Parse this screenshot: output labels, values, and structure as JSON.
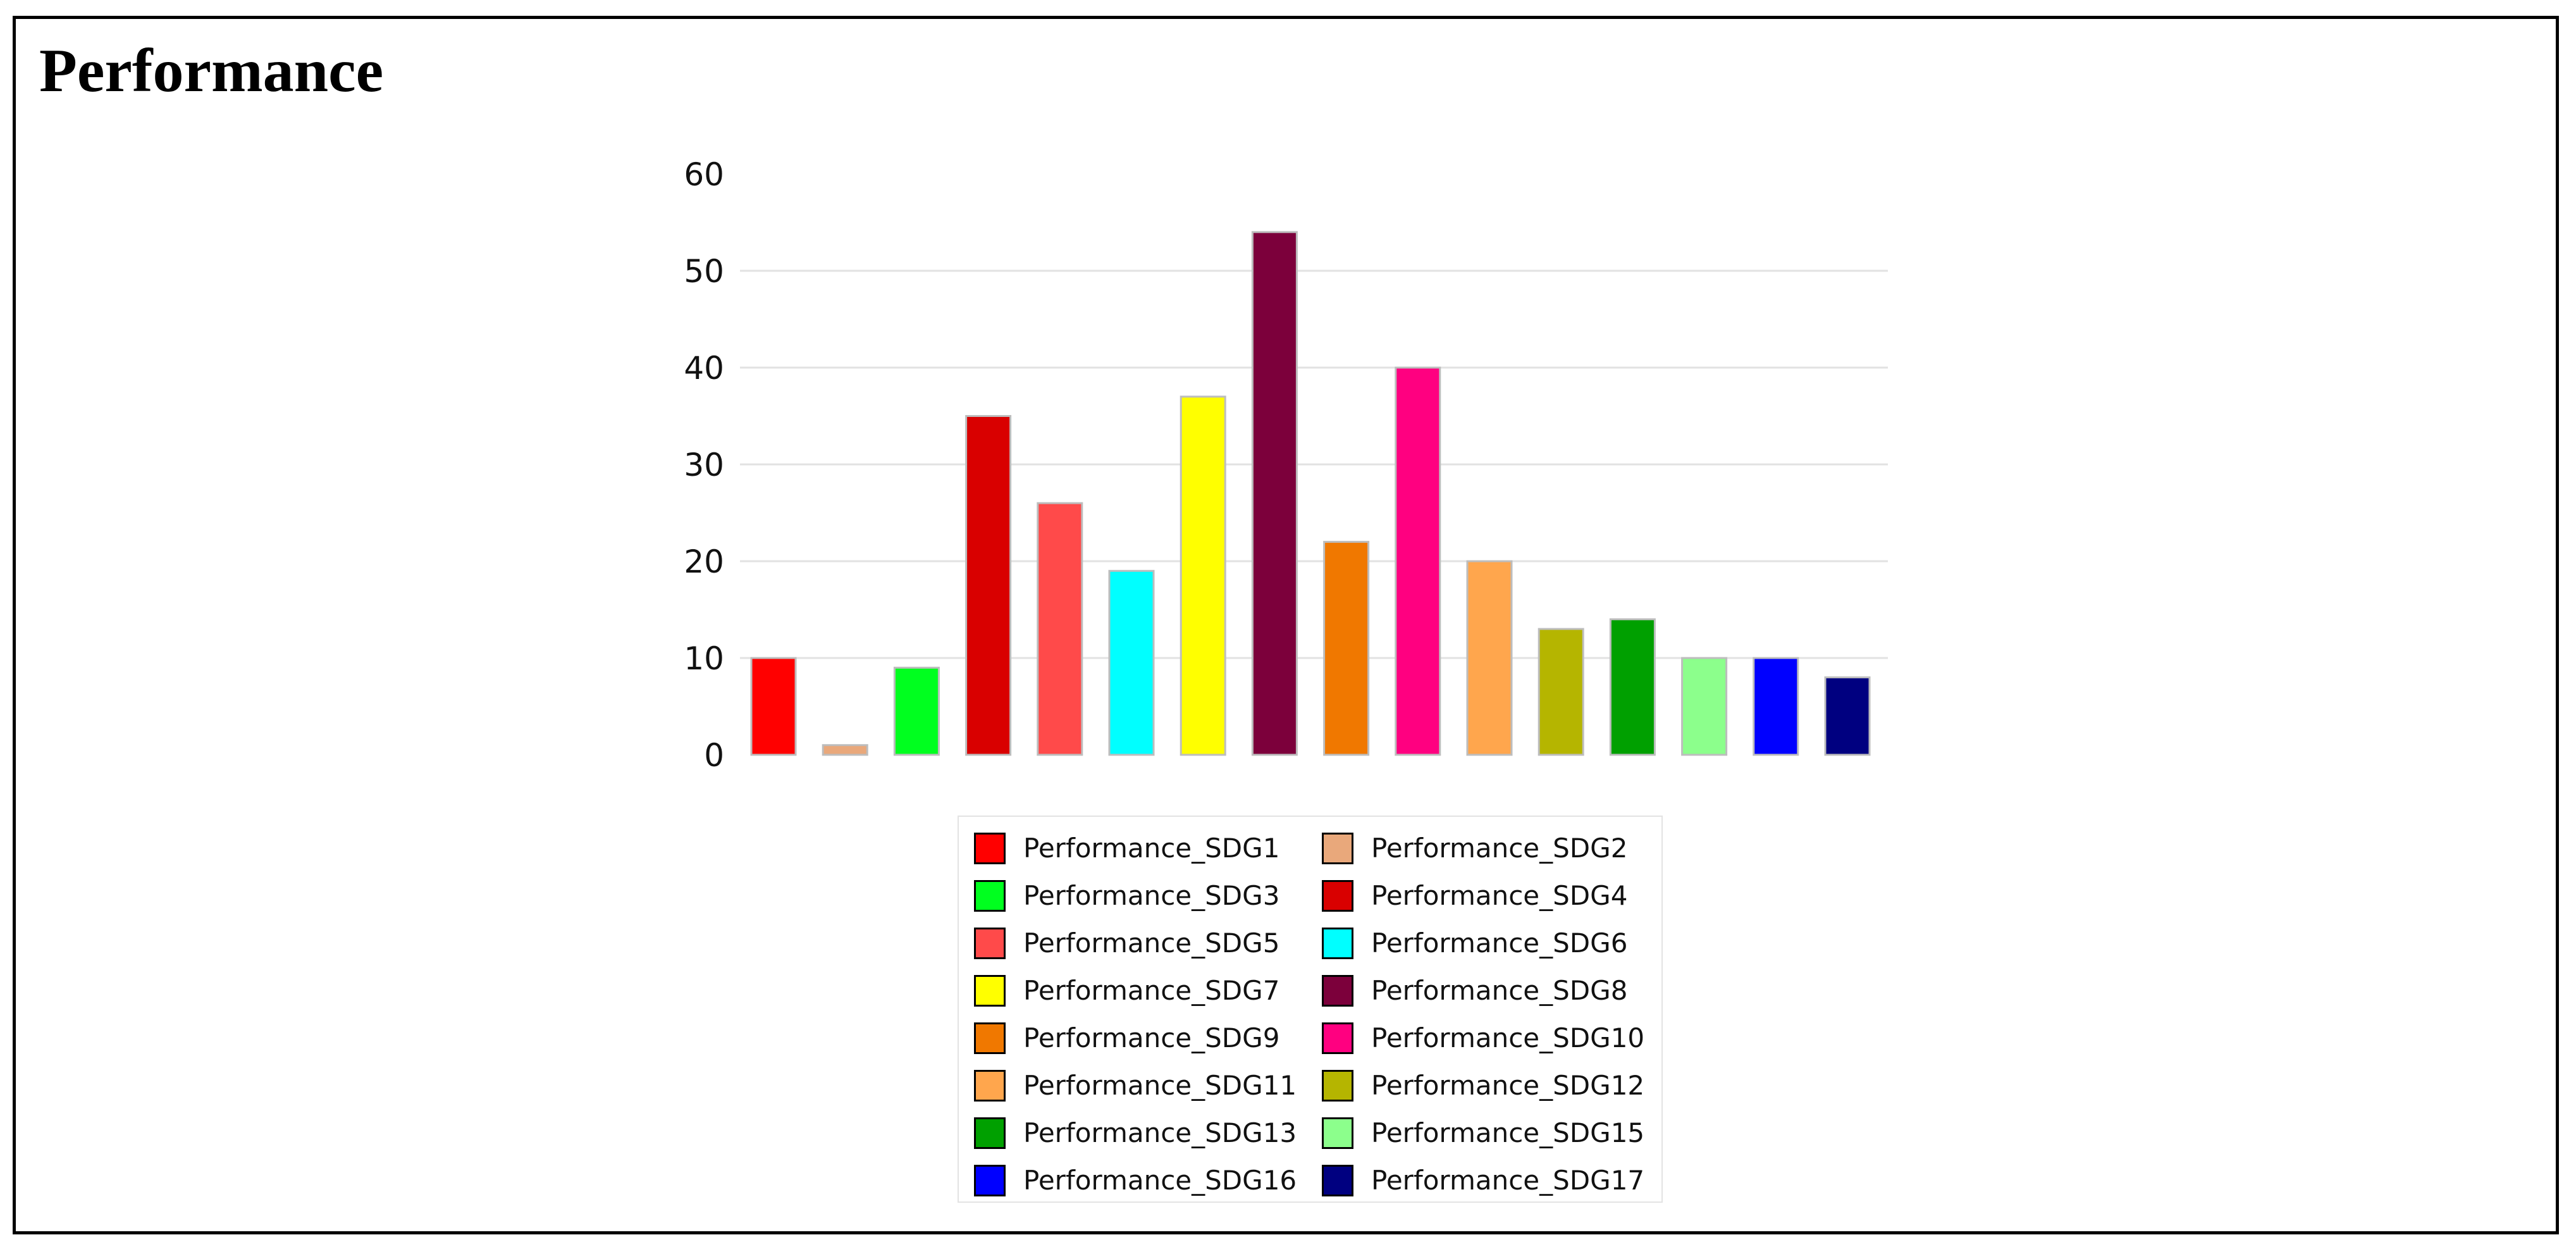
{
  "title": "Performance",
  "chart_data": {
    "type": "bar",
    "title": "Performance",
    "xlabel": "",
    "ylabel": "",
    "ylim": [
      0,
      60
    ],
    "yticks": [
      0,
      10,
      20,
      30,
      40,
      50,
      60
    ],
    "grid": true,
    "legend_position": "bottom",
    "series": [
      {
        "name": "Performance_SDG1",
        "value": 10,
        "color": "#ff0000"
      },
      {
        "name": "Performance_SDG2",
        "value": 1,
        "color": "#e9a87b"
      },
      {
        "name": "Performance_SDG3",
        "value": 9,
        "color": "#00ff1f"
      },
      {
        "name": "Performance_SDG4",
        "value": 35,
        "color": "#d90000"
      },
      {
        "name": "Performance_SDG5",
        "value": 26,
        "color": "#ff4a4a"
      },
      {
        "name": "Performance_SDG6",
        "value": 19,
        "color": "#00ffff"
      },
      {
        "name": "Performance_SDG7",
        "value": 37,
        "color": "#ffff00"
      },
      {
        "name": "Performance_SDG8",
        "value": 54,
        "color": "#7c003b"
      },
      {
        "name": "Performance_SDG9",
        "value": 22,
        "color": "#f07800"
      },
      {
        "name": "Performance_SDG10",
        "value": 40,
        "color": "#ff0080"
      },
      {
        "name": "Performance_SDG11",
        "value": 20,
        "color": "#ffa64d"
      },
      {
        "name": "Performance_SDG12",
        "value": 13,
        "color": "#b5b500"
      },
      {
        "name": "Performance_SDG13",
        "value": 14,
        "color": "#00a000"
      },
      {
        "name": "Performance_SDG15",
        "value": 10,
        "color": "#8cff8c"
      },
      {
        "name": "Performance_SDG16",
        "value": 10,
        "color": "#0000ff"
      },
      {
        "name": "Performance_SDG17",
        "value": 8,
        "color": "#000080"
      }
    ]
  }
}
